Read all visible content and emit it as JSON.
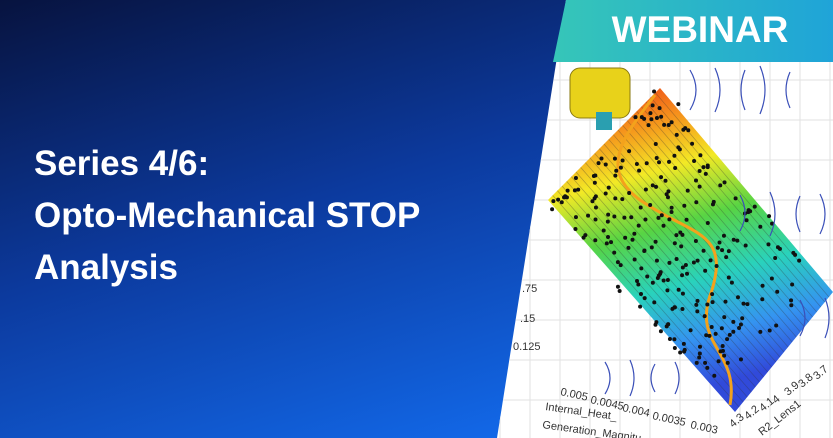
{
  "banner": {
    "tag": "WEBINAR",
    "title_lines": [
      "Series 4/6:",
      "Opto-Mechanical STOP",
      "Analysis"
    ]
  },
  "image": {
    "z_ticks": [
      ".75",
      ".15",
      "0.125"
    ],
    "x_ticks": [
      "0.005",
      "0.0045",
      "0.004",
      "0.0035",
      "0.003"
    ],
    "x_title": [
      "Internal_Heat_",
      "Generation_Magnitu"
    ],
    "r_ticks": [
      "4.3",
      "4.2",
      "4.1",
      "4",
      "3.9",
      "3.8",
      "3.7"
    ],
    "r_title": "R2_Lens1"
  }
}
